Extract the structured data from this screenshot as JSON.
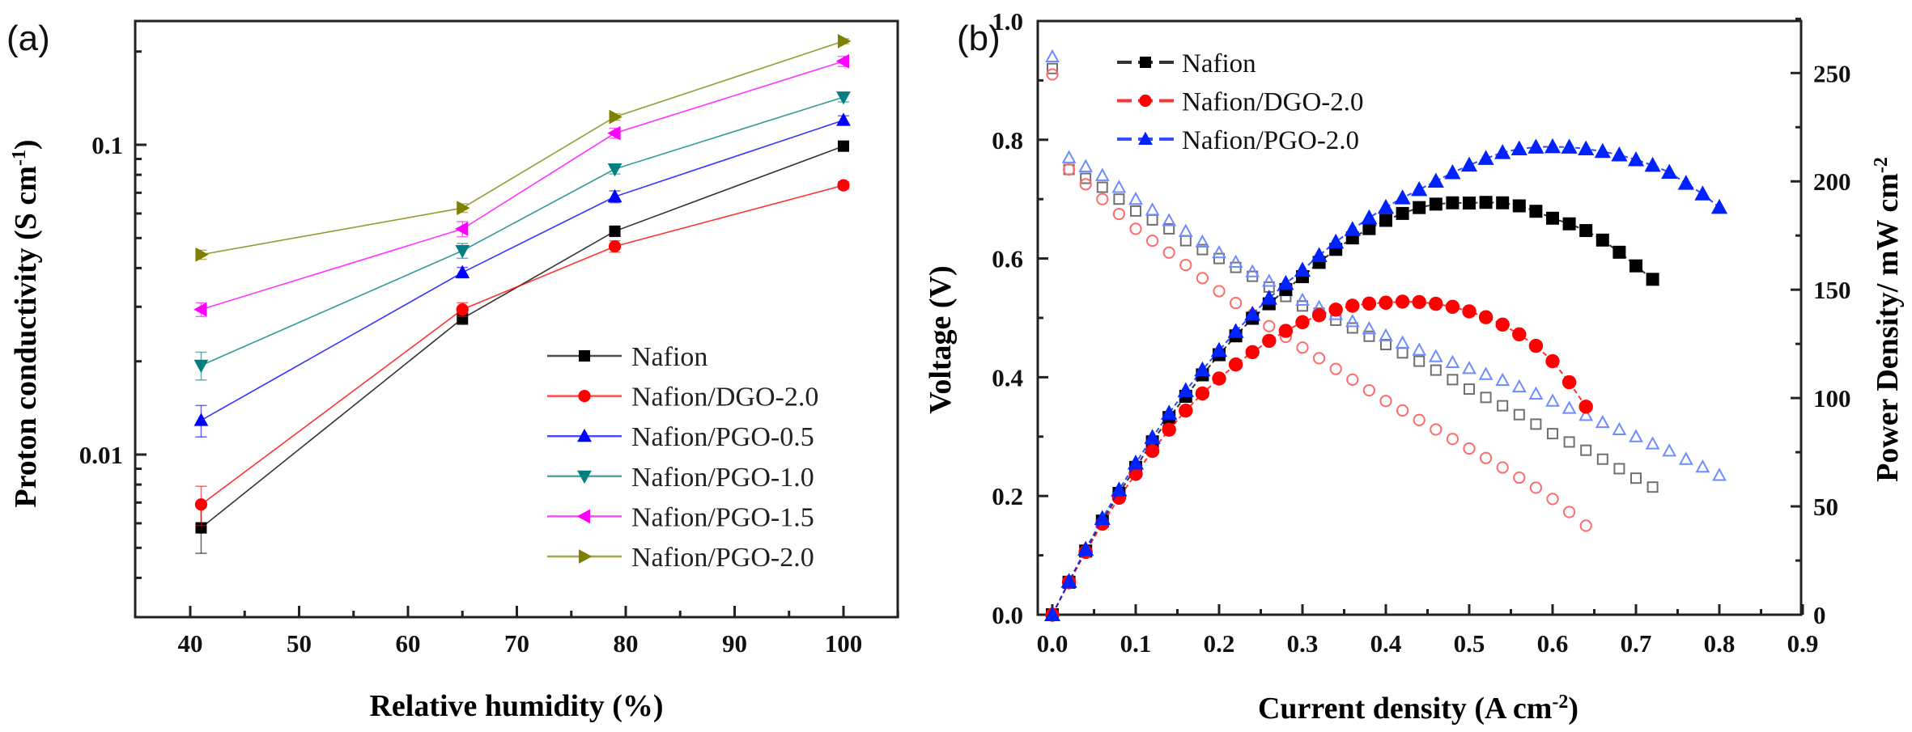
{
  "chart_data": [
    {
      "panel_label": "(a)",
      "type": "line",
      "xlabel": "Relative humidity (%)",
      "ylabel": {
        "main": "Proton conductivity (S cm",
        "sup": "-1",
        "end": ")"
      },
      "y_scale": "log",
      "xlim": [
        35,
        105
      ],
      "ylim": [
        0.003,
        0.25
      ],
      "x_ticks": [
        "40",
        "50",
        "60",
        "70",
        "80",
        "90",
        "100"
      ],
      "y_ticks": [
        "0.01",
        "0.1"
      ],
      "grid": false,
      "legend_position": "bottom-right",
      "x": [
        41,
        65,
        79,
        100
      ],
      "series": [
        {
          "name": "Nafion",
          "color": "#000000",
          "marker": "square",
          "values": [
            0.0058,
            0.0275,
            0.0526,
            0.099
          ],
          "errors": [
            0.001,
            0.0012,
            0.002,
            0.003
          ]
        },
        {
          "name": "Nafion/DGO-2.0",
          "color": "#ff0000",
          "marker": "circle",
          "values": [
            0.0069,
            0.0294,
            0.047,
            0.074
          ],
          "errors": [
            0.001,
            0.0015,
            0.002,
            0.002
          ]
        },
        {
          "name": "Nafion/PGO-0.5",
          "color": "#0000ff",
          "marker": "triangle-up",
          "values": [
            0.0129,
            0.0387,
            0.068,
            0.12
          ],
          "errors": [
            0.0015,
            0.0015,
            0.003,
            0.004
          ]
        },
        {
          "name": "Nafion/PGO-1.0",
          "color": "#008080",
          "marker": "triangle-down",
          "values": [
            0.0194,
            0.0455,
            0.0835,
            0.1425
          ],
          "errors": [
            0.002,
            0.0025,
            0.003,
            0.005
          ]
        },
        {
          "name": "Nafion/PGO-1.5",
          "color": "#ff00ff",
          "marker": "triangle-left",
          "values": [
            0.0294,
            0.0535,
            0.109,
            0.186
          ],
          "errors": [
            0.0015,
            0.003,
            0.004,
            0.007
          ]
        },
        {
          "name": "Nafion/PGO-2.0",
          "color": "#808000",
          "marker": "triangle-right",
          "values": [
            0.0442,
            0.0625,
            0.123,
            0.216
          ],
          "errors": [
            0.0015,
            0.002,
            0.003,
            0.004
          ]
        }
      ]
    },
    {
      "panel_label": "(b)",
      "type": "scatter",
      "xlabel": {
        "main": "Current density (A cm",
        "sup": "-2",
        "end": ")"
      },
      "ylabel": "Voltage (V)",
      "y2label": {
        "main": "Power Density/ mW cm",
        "sup": "-2"
      },
      "xlim": [
        -0.02,
        0.9
      ],
      "ylim": [
        0,
        1.0
      ],
      "y2lim": [
        0,
        274
      ],
      "x_ticks": [
        "0.0",
        "0.1",
        "0.2",
        "0.3",
        "0.4",
        "0.5",
        "0.6",
        "0.7",
        "0.8",
        "0.9"
      ],
      "y_ticks": [
        "0.0",
        "0.2",
        "0.4",
        "0.6",
        "0.8",
        "1.0"
      ],
      "y2_ticks": [
        "0",
        "50",
        "100",
        "150",
        "200",
        "250"
      ],
      "grid": false,
      "legend_position": "top-left",
      "series": [
        {
          "name": "Nafion",
          "color": "#000000",
          "open_color": "#707070",
          "marker": "square",
          "x": [
            0,
            0.02,
            0.04,
            0.06,
            0.08,
            0.1,
            0.12,
            0.14,
            0.16,
            0.18,
            0.2,
            0.22,
            0.24,
            0.26,
            0.28,
            0.3,
            0.32,
            0.34,
            0.36,
            0.38,
            0.4,
            0.42,
            0.44,
            0.46,
            0.48,
            0.5,
            0.52,
            0.54,
            0.56,
            0.58,
            0.6,
            0.62,
            0.64,
            0.66,
            0.68,
            0.7,
            0.72
          ],
          "voltage": [
            0.92,
            0.75,
            0.735,
            0.72,
            0.7,
            0.68,
            0.665,
            0.65,
            0.63,
            0.615,
            0.6,
            0.585,
            0.57,
            0.552,
            0.536,
            0.52,
            0.508,
            0.496,
            0.483,
            0.469,
            0.455,
            0.441,
            0.427,
            0.412,
            0.396,
            0.38,
            0.366,
            0.352,
            0.337,
            0.321,
            0.305,
            0.291,
            0.277,
            0.262,
            0.246,
            0.23,
            0.215
          ],
          "power": [
            0,
            15.0,
            29.4,
            43.2,
            56.0,
            68.0,
            79.8,
            91.0,
            100.8,
            110.7,
            120.0,
            128.7,
            136.8,
            143.5,
            150.1,
            156.0,
            162.6,
            168.6,
            173.9,
            178.2,
            182.0,
            185.2,
            187.9,
            189.5,
            190.1,
            190.0,
            190.3,
            190.1,
            188.7,
            186.2,
            183.0,
            180.4,
            177.3,
            172.9,
            167.3,
            161.0,
            154.8
          ]
        },
        {
          "name": "Nafion/DGO-2.0",
          "color": "#ff0000",
          "open_color": "#ff6b6b",
          "marker": "circle",
          "x": [
            0,
            0.02,
            0.04,
            0.06,
            0.08,
            0.1,
            0.12,
            0.14,
            0.16,
            0.18,
            0.2,
            0.22,
            0.24,
            0.26,
            0.28,
            0.3,
            0.32,
            0.34,
            0.36,
            0.38,
            0.4,
            0.42,
            0.44,
            0.46,
            0.48,
            0.5,
            0.52,
            0.54,
            0.56,
            0.58,
            0.6,
            0.62,
            0.64
          ],
          "voltage": [
            0.91,
            0.75,
            0.725,
            0.7,
            0.675,
            0.65,
            0.63,
            0.61,
            0.589,
            0.567,
            0.545,
            0.525,
            0.505,
            0.486,
            0.468,
            0.45,
            0.432,
            0.414,
            0.396,
            0.378,
            0.36,
            0.344,
            0.328,
            0.312,
            0.296,
            0.28,
            0.264,
            0.248,
            0.231,
            0.214,
            0.195,
            0.173,
            0.15
          ],
          "power": [
            0,
            15.0,
            29.0,
            42.0,
            54.0,
            65.0,
            75.6,
            85.4,
            94.2,
            102.1,
            109.0,
            115.5,
            121.2,
            126.4,
            131.0,
            135.0,
            138.2,
            140.8,
            142.6,
            143.6,
            144.0,
            144.5,
            144.3,
            143.5,
            142.1,
            140.0,
            137.3,
            133.9,
            129.4,
            124.1,
            117.0,
            107.3,
            96.0
          ]
        },
        {
          "name": "Nafion/PGO-2.0",
          "color": "#0022ff",
          "open_color": "#6f8cff",
          "marker": "triangle-up",
          "x": [
            0,
            0.02,
            0.04,
            0.06,
            0.08,
            0.1,
            0.12,
            0.14,
            0.16,
            0.18,
            0.2,
            0.22,
            0.24,
            0.26,
            0.28,
            0.3,
            0.32,
            0.34,
            0.36,
            0.38,
            0.4,
            0.42,
            0.44,
            0.46,
            0.48,
            0.5,
            0.52,
            0.54,
            0.56,
            0.58,
            0.6,
            0.62,
            0.64,
            0.66,
            0.68,
            0.7,
            0.72,
            0.74,
            0.76,
            0.78,
            0.8
          ],
          "voltage": [
            0.94,
            0.77,
            0.755,
            0.74,
            0.72,
            0.7,
            0.682,
            0.664,
            0.646,
            0.628,
            0.61,
            0.594,
            0.578,
            0.562,
            0.546,
            0.53,
            0.518,
            0.506,
            0.494,
            0.482,
            0.47,
            0.458,
            0.446,
            0.435,
            0.425,
            0.415,
            0.405,
            0.395,
            0.384,
            0.372,
            0.36,
            0.348,
            0.336,
            0.324,
            0.312,
            0.3,
            0.288,
            0.276,
            0.262,
            0.249,
            0.235
          ],
          "power": [
            0,
            15.4,
            30.2,
            44.4,
            57.6,
            70.0,
            81.8,
            93.0,
            103.4,
            113.0,
            122.0,
            130.7,
            138.7,
            146.1,
            152.9,
            159.0,
            165.8,
            172.0,
            177.8,
            183.2,
            188.0,
            192.4,
            196.2,
            200.1,
            204.0,
            207.5,
            210.6,
            213.3,
            215.0,
            215.8,
            216.0,
            215.8,
            215.0,
            213.8,
            212.2,
            210.0,
            207.4,
            204.2,
            199.1,
            194.2,
            188.0
          ]
        }
      ]
    }
  ]
}
